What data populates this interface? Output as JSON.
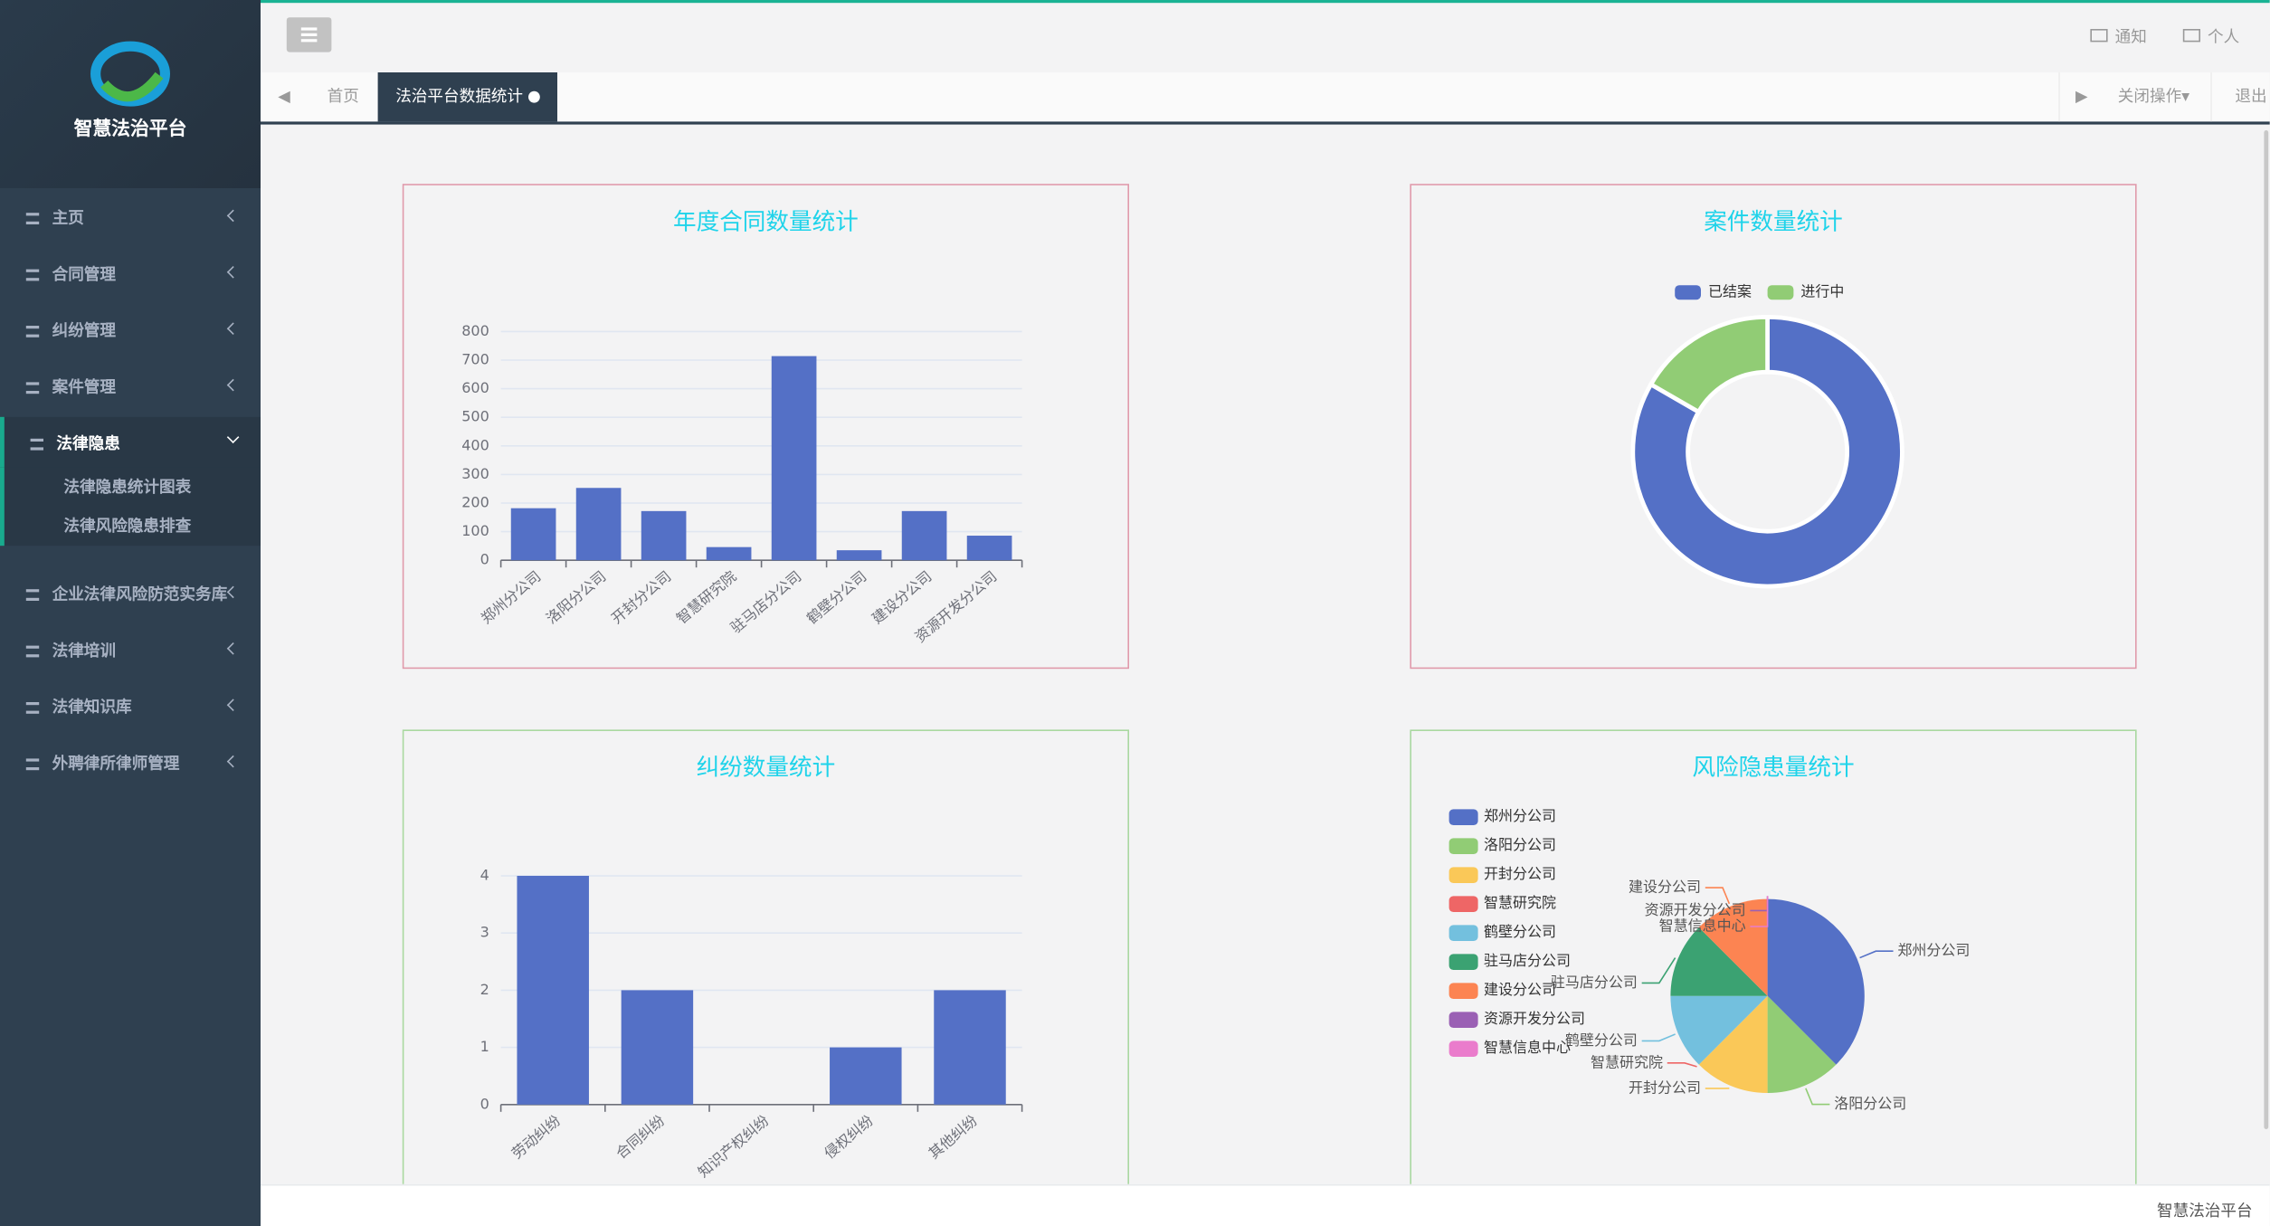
{
  "sidebar": {
    "brand": "智慧法治平台",
    "menu": [
      {
        "label": "主页"
      },
      {
        "label": "合同管理"
      },
      {
        "label": "纠纷管理"
      },
      {
        "label": "案件管理"
      },
      {
        "label": "法律隐患",
        "children": [
          "法律隐患统计图表",
          "法律风险隐患排查"
        ]
      },
      {
        "label": "企业法律风险防范实务库"
      },
      {
        "label": "法律培训"
      },
      {
        "label": "法律知识库"
      },
      {
        "label": "外聘律所律师管理"
      }
    ]
  },
  "header": {
    "notify": "通知",
    "profile": "个人"
  },
  "tabs": {
    "home": "首页",
    "active": "法治平台数据统计",
    "close_ops": "关闭操作",
    "logout": "退出"
  },
  "footer": "智慧法治平台",
  "chart_data": [
    {
      "type": "bar",
      "title": "年度合同数量统计",
      "categories": [
        "郑州分公司",
        "洛阳分公司",
        "开封分公司",
        "智慧研究院",
        "驻马店分公司",
        "鹤壁分公司",
        "建设分公司",
        "资源开发分公司"
      ],
      "values": [
        182,
        253,
        172,
        46,
        714,
        35,
        172,
        86
      ],
      "color": "#5470c6",
      "ylim": [
        0,
        800
      ],
      "yticks": [
        0,
        100,
        200,
        300,
        400,
        500,
        600,
        700,
        800
      ],
      "grid": true
    },
    {
      "type": "pie",
      "title": "案件数量统计",
      "donut": true,
      "legend": "top",
      "categories": [
        "已结案",
        "进行中"
      ],
      "values": [
        5,
        1
      ],
      "colors": [
        "#5470c6",
        "#91cc75"
      ]
    },
    {
      "type": "bar",
      "title": "纠纷数量统计",
      "categories": [
        "劳动纠纷",
        "合同纠纷",
        "知识产权纠纷",
        "侵权纠纷",
        "其他纠纷"
      ],
      "values": [
        4,
        2,
        0,
        1,
        2
      ],
      "color": "#5470c6",
      "ylim": [
        0,
        4
      ],
      "yticks": [
        0,
        1,
        2,
        3,
        4
      ],
      "grid": true
    },
    {
      "type": "pie",
      "title": "风险隐患量统计",
      "donut": false,
      "legend": "left",
      "categories": [
        "郑州分公司",
        "洛阳分公司",
        "开封分公司",
        "智慧研究院",
        "鹤壁分公司",
        "驻马店分公司",
        "建设分公司",
        "资源开发分公司",
        "智慧信息中心"
      ],
      "values": [
        3,
        1,
        1,
        0,
        1,
        1,
        1,
        0,
        0
      ],
      "colors": [
        "#5470c6",
        "#91cc75",
        "#fac858",
        "#ee6666",
        "#73c0de",
        "#3ba272",
        "#fc8452",
        "#9a60b4",
        "#ea7ccc"
      ]
    }
  ]
}
